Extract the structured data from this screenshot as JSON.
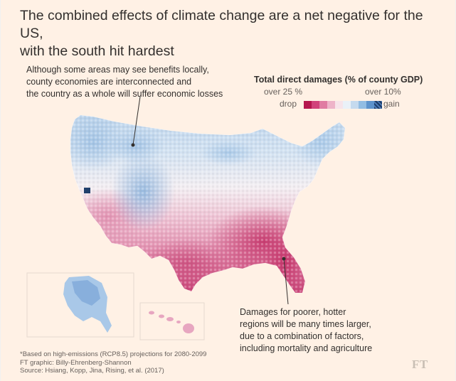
{
  "title": {
    "line1": "The combined effects of climate change are a net negative for the US,",
    "line2": "with the south hit hardest"
  },
  "annotation_top": {
    "line1": "Although some areas may see benefits locally,",
    "line2": "county economies are interconnected and",
    "line3": "the country as a whole will suffer economic losses"
  },
  "legend": {
    "title": "Total direct damages (% of county GDP)",
    "left_top": "over 25 %",
    "left_bottom": "drop",
    "right_top": "over 10%",
    "right_bottom": "gain",
    "colors": [
      "#b5174e",
      "#d1437a",
      "#e07ca2",
      "#eeb4c9",
      "#f7e4ea",
      "#eaf1f8",
      "#c5daee",
      "#92bde3",
      "#5d93cc",
      "dark"
    ]
  },
  "annotation_bottom": {
    "line1": "Damages for poorer, hotter",
    "line2": "regions will be many times larger,",
    "line3": "due to a combination of factors,",
    "line4": "including mortality and agriculture"
  },
  "notes": {
    "line1": "*Based on high-emissions (RCP8.5) projections for 2080-2099",
    "line2": "FT graphic: Billy-Ehrenberg-Shannon",
    "line3": "Source: Hsiang, Kopp, Jina, Rising, et al. (2017)"
  },
  "logo": "FT"
}
